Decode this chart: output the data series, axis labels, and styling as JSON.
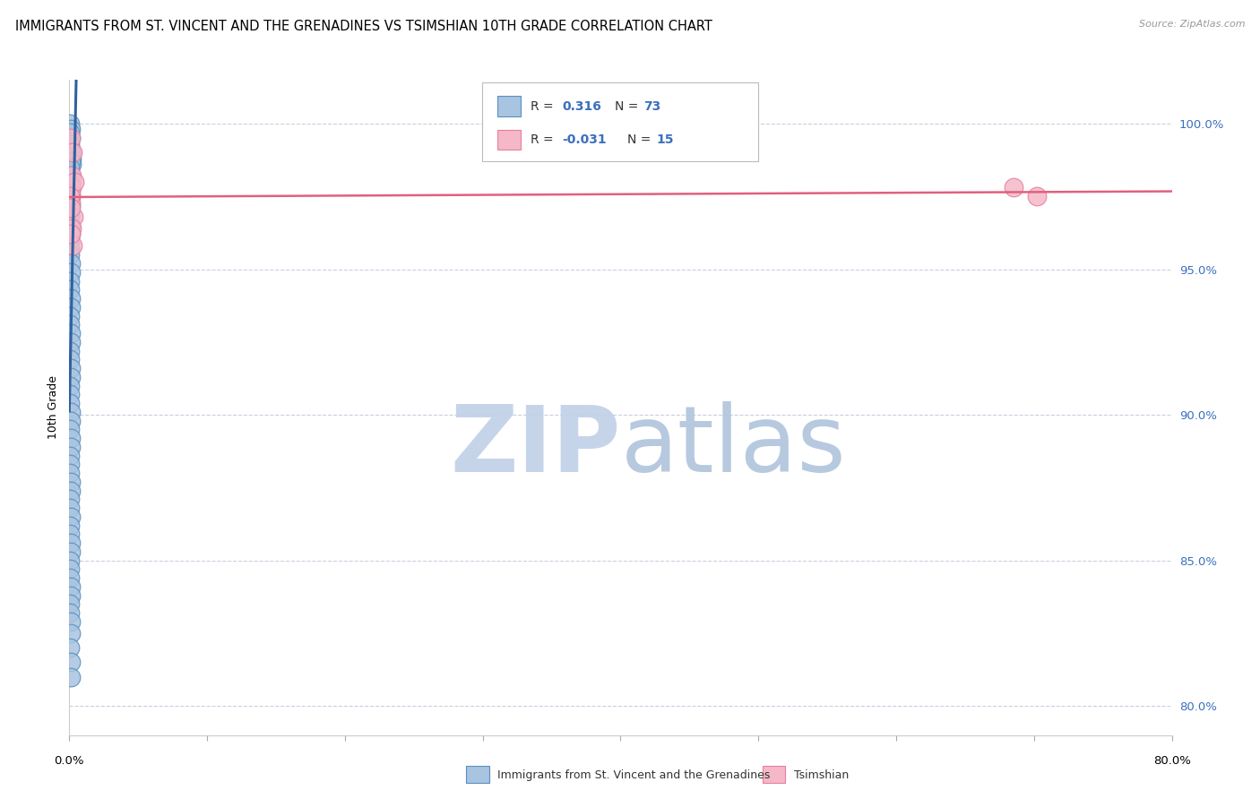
{
  "title": "IMMIGRANTS FROM ST. VINCENT AND THE GRENADINES VS TSIMSHIAN 10TH GRADE CORRELATION CHART",
  "source": "Source: ZipAtlas.com",
  "ylabel": "10th Grade",
  "y_ticks": [
    80.0,
    85.0,
    90.0,
    95.0,
    100.0
  ],
  "y_tick_labels": [
    "80.0%",
    "85.0%",
    "90.0%",
    "95.0%",
    "100.0%"
  ],
  "xlim": [
    0.0,
    80.0
  ],
  "ylim": [
    79.0,
    101.5
  ],
  "blue_label": "Immigrants from St. Vincent and the Grenadines",
  "pink_label": "Tsimshian",
  "blue_R": 0.316,
  "blue_N": 73,
  "pink_R": -0.031,
  "pink_N": 15,
  "blue_color": "#a8c4e0",
  "pink_color": "#f4b8c8",
  "blue_edge_color": "#5a8fc0",
  "pink_edge_color": "#e87fa0",
  "blue_line_color": "#3060a0",
  "pink_line_color": "#e06080",
  "blue_scatter_x": [
    0.05,
    0.08,
    0.12,
    0.06,
    0.1,
    0.15,
    0.2,
    0.07,
    0.09,
    0.11,
    0.04,
    0.06,
    0.08,
    0.13,
    0.05,
    0.09,
    0.14,
    0.07,
    0.1,
    0.12,
    0.03,
    0.05,
    0.08,
    0.11,
    0.06,
    0.04,
    0.07,
    0.1,
    0.13,
    0.05,
    0.06,
    0.09,
    0.14,
    0.02,
    0.05,
    0.08,
    0.11,
    0.04,
    0.07,
    0.09,
    0.12,
    0.03,
    0.05,
    0.07,
    0.1,
    0.13,
    0.05,
    0.08,
    0.11,
    0.06,
    0.04,
    0.06,
    0.09,
    0.12,
    0.04,
    0.07,
    0.1,
    0.03,
    0.05,
    0.08,
    0.12,
    0.04,
    0.05,
    0.07,
    0.09,
    0.13,
    0.04,
    0.07,
    0.09,
    0.11,
    0.05,
    0.08,
    0.1
  ],
  "blue_scatter_y": [
    100.0,
    99.8,
    99.5,
    99.2,
    99.0,
    98.8,
    98.6,
    98.4,
    98.2,
    98.0,
    99.7,
    99.3,
    99.0,
    98.7,
    98.5,
    98.2,
    97.9,
    97.7,
    97.5,
    97.2,
    97.0,
    96.8,
    96.5,
    96.2,
    96.0,
    95.7,
    95.5,
    95.2,
    94.9,
    94.6,
    94.3,
    94.0,
    93.7,
    93.4,
    93.1,
    92.8,
    92.5,
    92.2,
    91.9,
    91.6,
    91.3,
    91.0,
    90.7,
    90.4,
    90.1,
    89.8,
    89.5,
    89.2,
    88.9,
    88.6,
    88.3,
    88.0,
    87.7,
    87.4,
    87.1,
    86.8,
    86.5,
    86.2,
    85.9,
    85.6,
    85.3,
    85.0,
    84.7,
    84.4,
    84.1,
    83.8,
    83.5,
    83.2,
    82.9,
    82.5,
    82.0,
    81.5,
    81.0
  ],
  "pink_scatter_x": [
    0.1,
    0.25,
    0.15,
    0.2,
    0.08,
    0.3,
    0.12,
    0.35,
    0.18,
    0.06,
    0.22,
    0.14,
    68.5,
    70.2,
    0.09
  ],
  "pink_scatter_y": [
    99.5,
    99.0,
    98.2,
    97.8,
    97.3,
    96.8,
    97.6,
    98.0,
    96.4,
    97.5,
    95.8,
    96.2,
    97.8,
    97.5,
    97.1
  ],
  "watermark_zip": "ZIP",
  "watermark_atlas": "atlas",
  "watermark_color": "#c8d8ee",
  "grid_color": "#c8d0e0",
  "bg_color": "#ffffff",
  "title_fontsize": 10.5,
  "axis_label_fontsize": 9,
  "tick_fontsize": 9.5
}
